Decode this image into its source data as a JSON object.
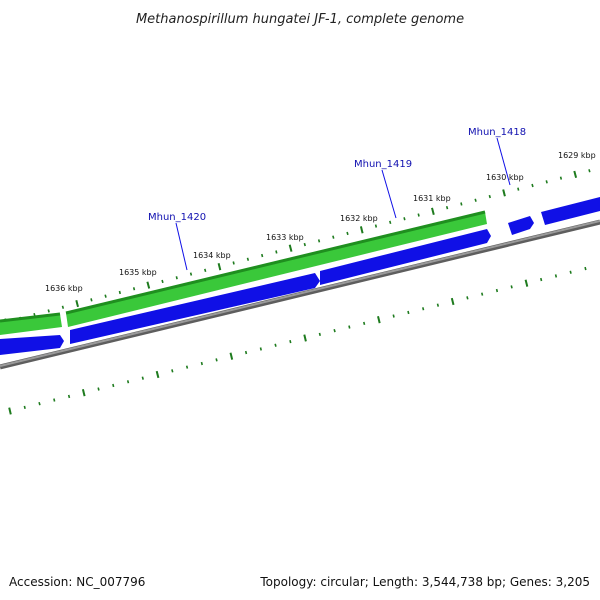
{
  "title": "Methanospirillum hungatei JF-1, complete genome",
  "footer": {
    "accession": "Accession: NC_007796",
    "summary": "Topology: circular; Length: 3,544,738 bp; Genes: 3,205"
  },
  "colors": {
    "backbone": "#8a8a8a",
    "tick": "#1e7b1e",
    "forward_feature": "#3ac83a",
    "forward_feature_edge": "#1f8f1f",
    "reverse_feature": "#1010e6",
    "gene_label": "#1010b0"
  },
  "scale": {
    "unit": "kbp",
    "ticks": [
      "1629 kbp",
      "1630 kbp",
      "1631 kbp",
      "1632 kbp",
      "1633 kbp",
      "1634 kbp",
      "1635 kbp",
      "1636 kbp"
    ]
  },
  "gene_labels": [
    "Mhun_1418",
    "Mhun_1419",
    "Mhun_1420"
  ]
}
